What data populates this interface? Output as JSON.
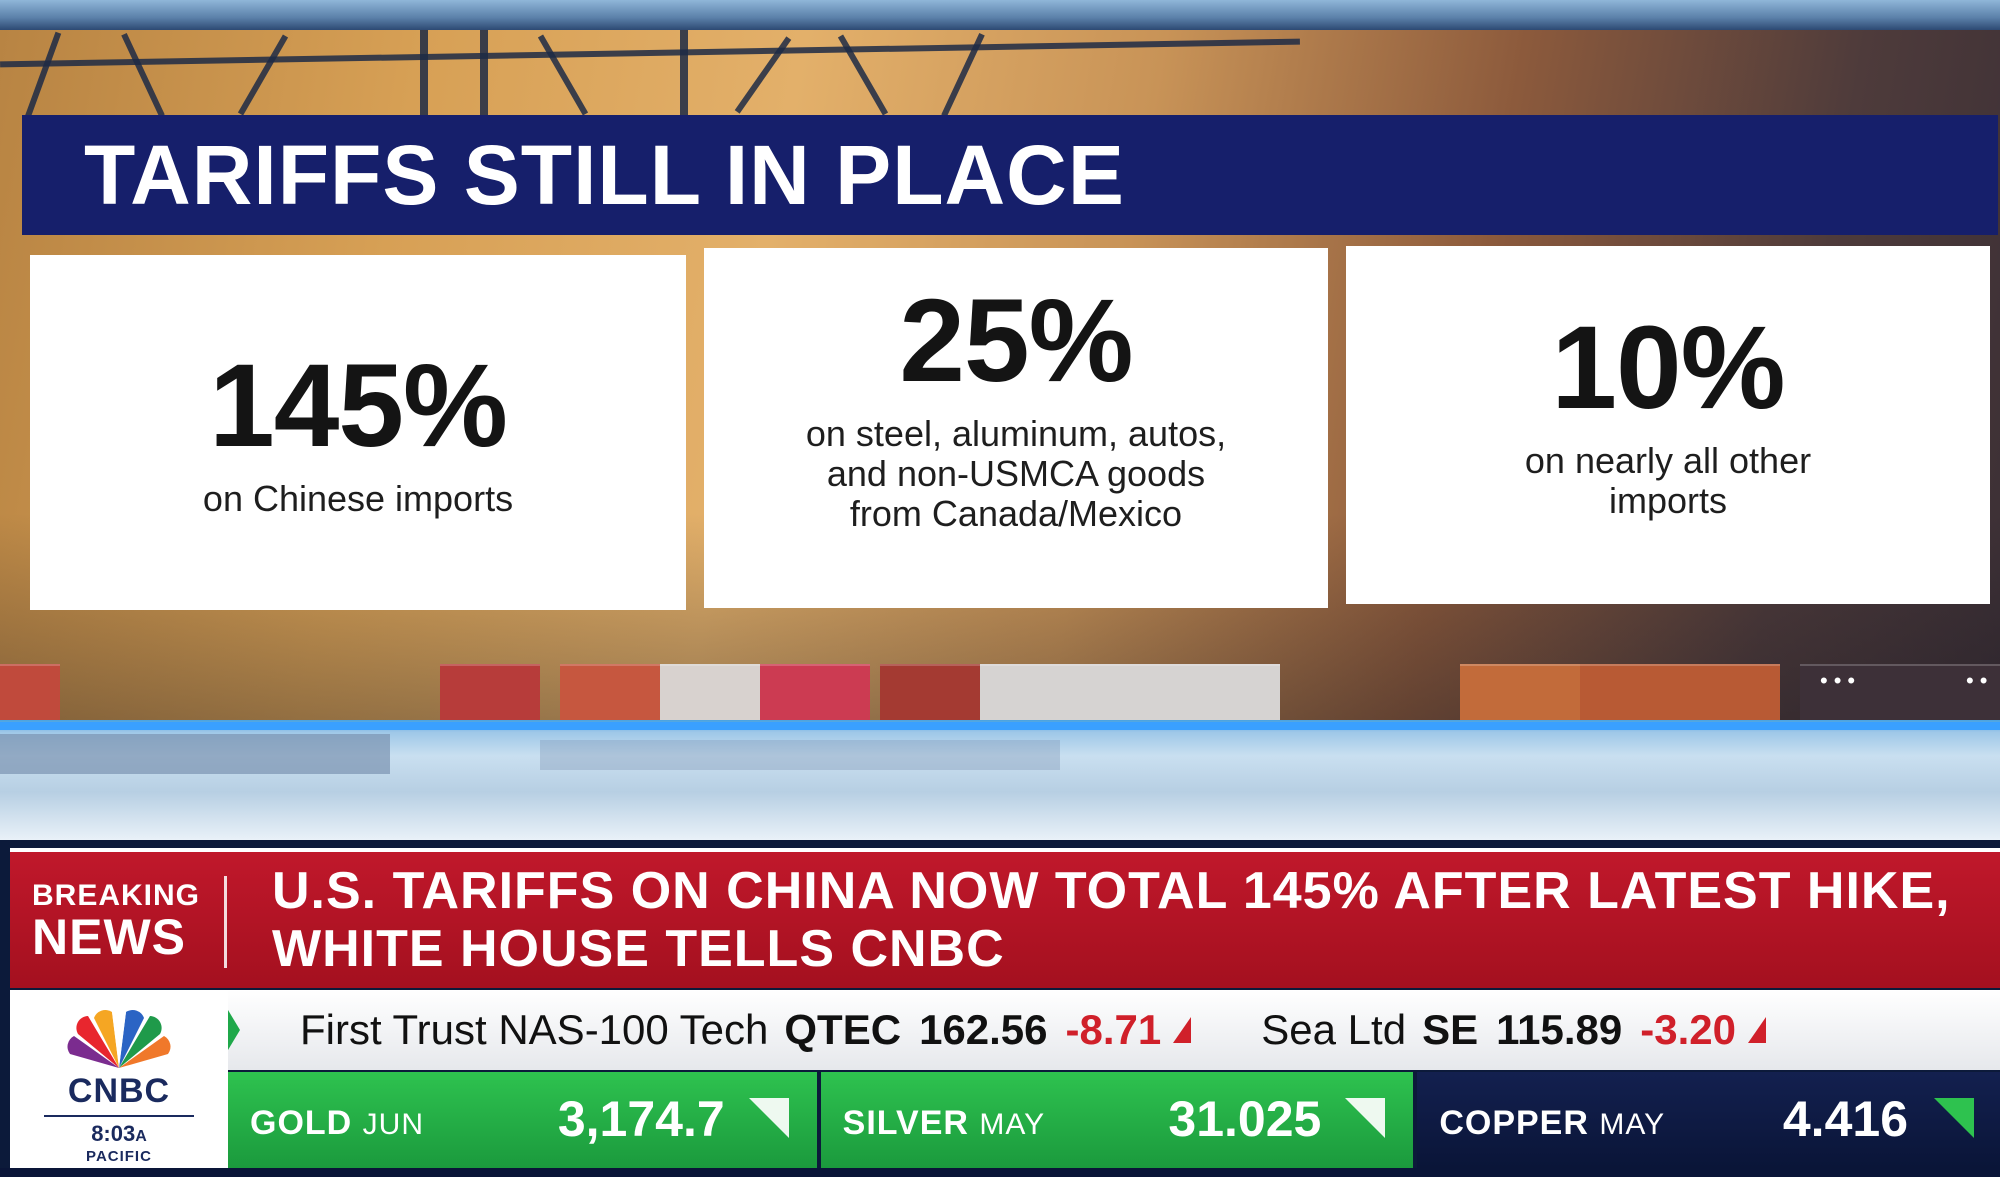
{
  "graphic": {
    "title": "TARIFFS STILL IN PLACE",
    "cards": [
      {
        "value": "145%",
        "description": "on Chinese imports"
      },
      {
        "value": "25%",
        "description_lines": [
          "on steel, aluminum, autos,",
          "and non-USMCA goods",
          "from Canada/Mexico"
        ]
      },
      {
        "value": "10%",
        "description_lines": [
          "on nearly all other",
          "imports"
        ]
      }
    ]
  },
  "breaking": {
    "label_line1": "BREAKING",
    "label_line2": "NEWS",
    "headline": "U.S. TARIFFS ON CHINA NOW TOTAL 145% AFTER LATEST HIKE, WHITE HOUSE TELLS CNBC"
  },
  "logo": {
    "network": "CNBC",
    "time": "8:03",
    "ampm": "A",
    "timezone": "PACIFIC"
  },
  "ticker": [
    {
      "name": "First Trust NAS-100 Tech",
      "symbol": "QTEC",
      "price": "162.56",
      "change": "-8.71",
      "direction": "down"
    },
    {
      "name": "Sea Ltd",
      "symbol": "SE",
      "price": "115.89",
      "change": "-3.20",
      "direction": "down"
    }
  ],
  "commodities": [
    {
      "name": "GOLD",
      "month": "JUN",
      "value": "3,174.7",
      "direction": "down",
      "color": "#1fa84a"
    },
    {
      "name": "SILVER",
      "month": "MAY",
      "value": "31.025",
      "direction": "down",
      "color": "#1fa84a"
    },
    {
      "name": "COPPER",
      "month": "MAY",
      "value": "4.416",
      "direction": "down",
      "color": "#0f1c47"
    }
  ],
  "colors": {
    "title_bar": "#161f6b",
    "breaking_red": "#b3142a",
    "negative": "#d0202a",
    "positive_green": "#1fa84a"
  }
}
